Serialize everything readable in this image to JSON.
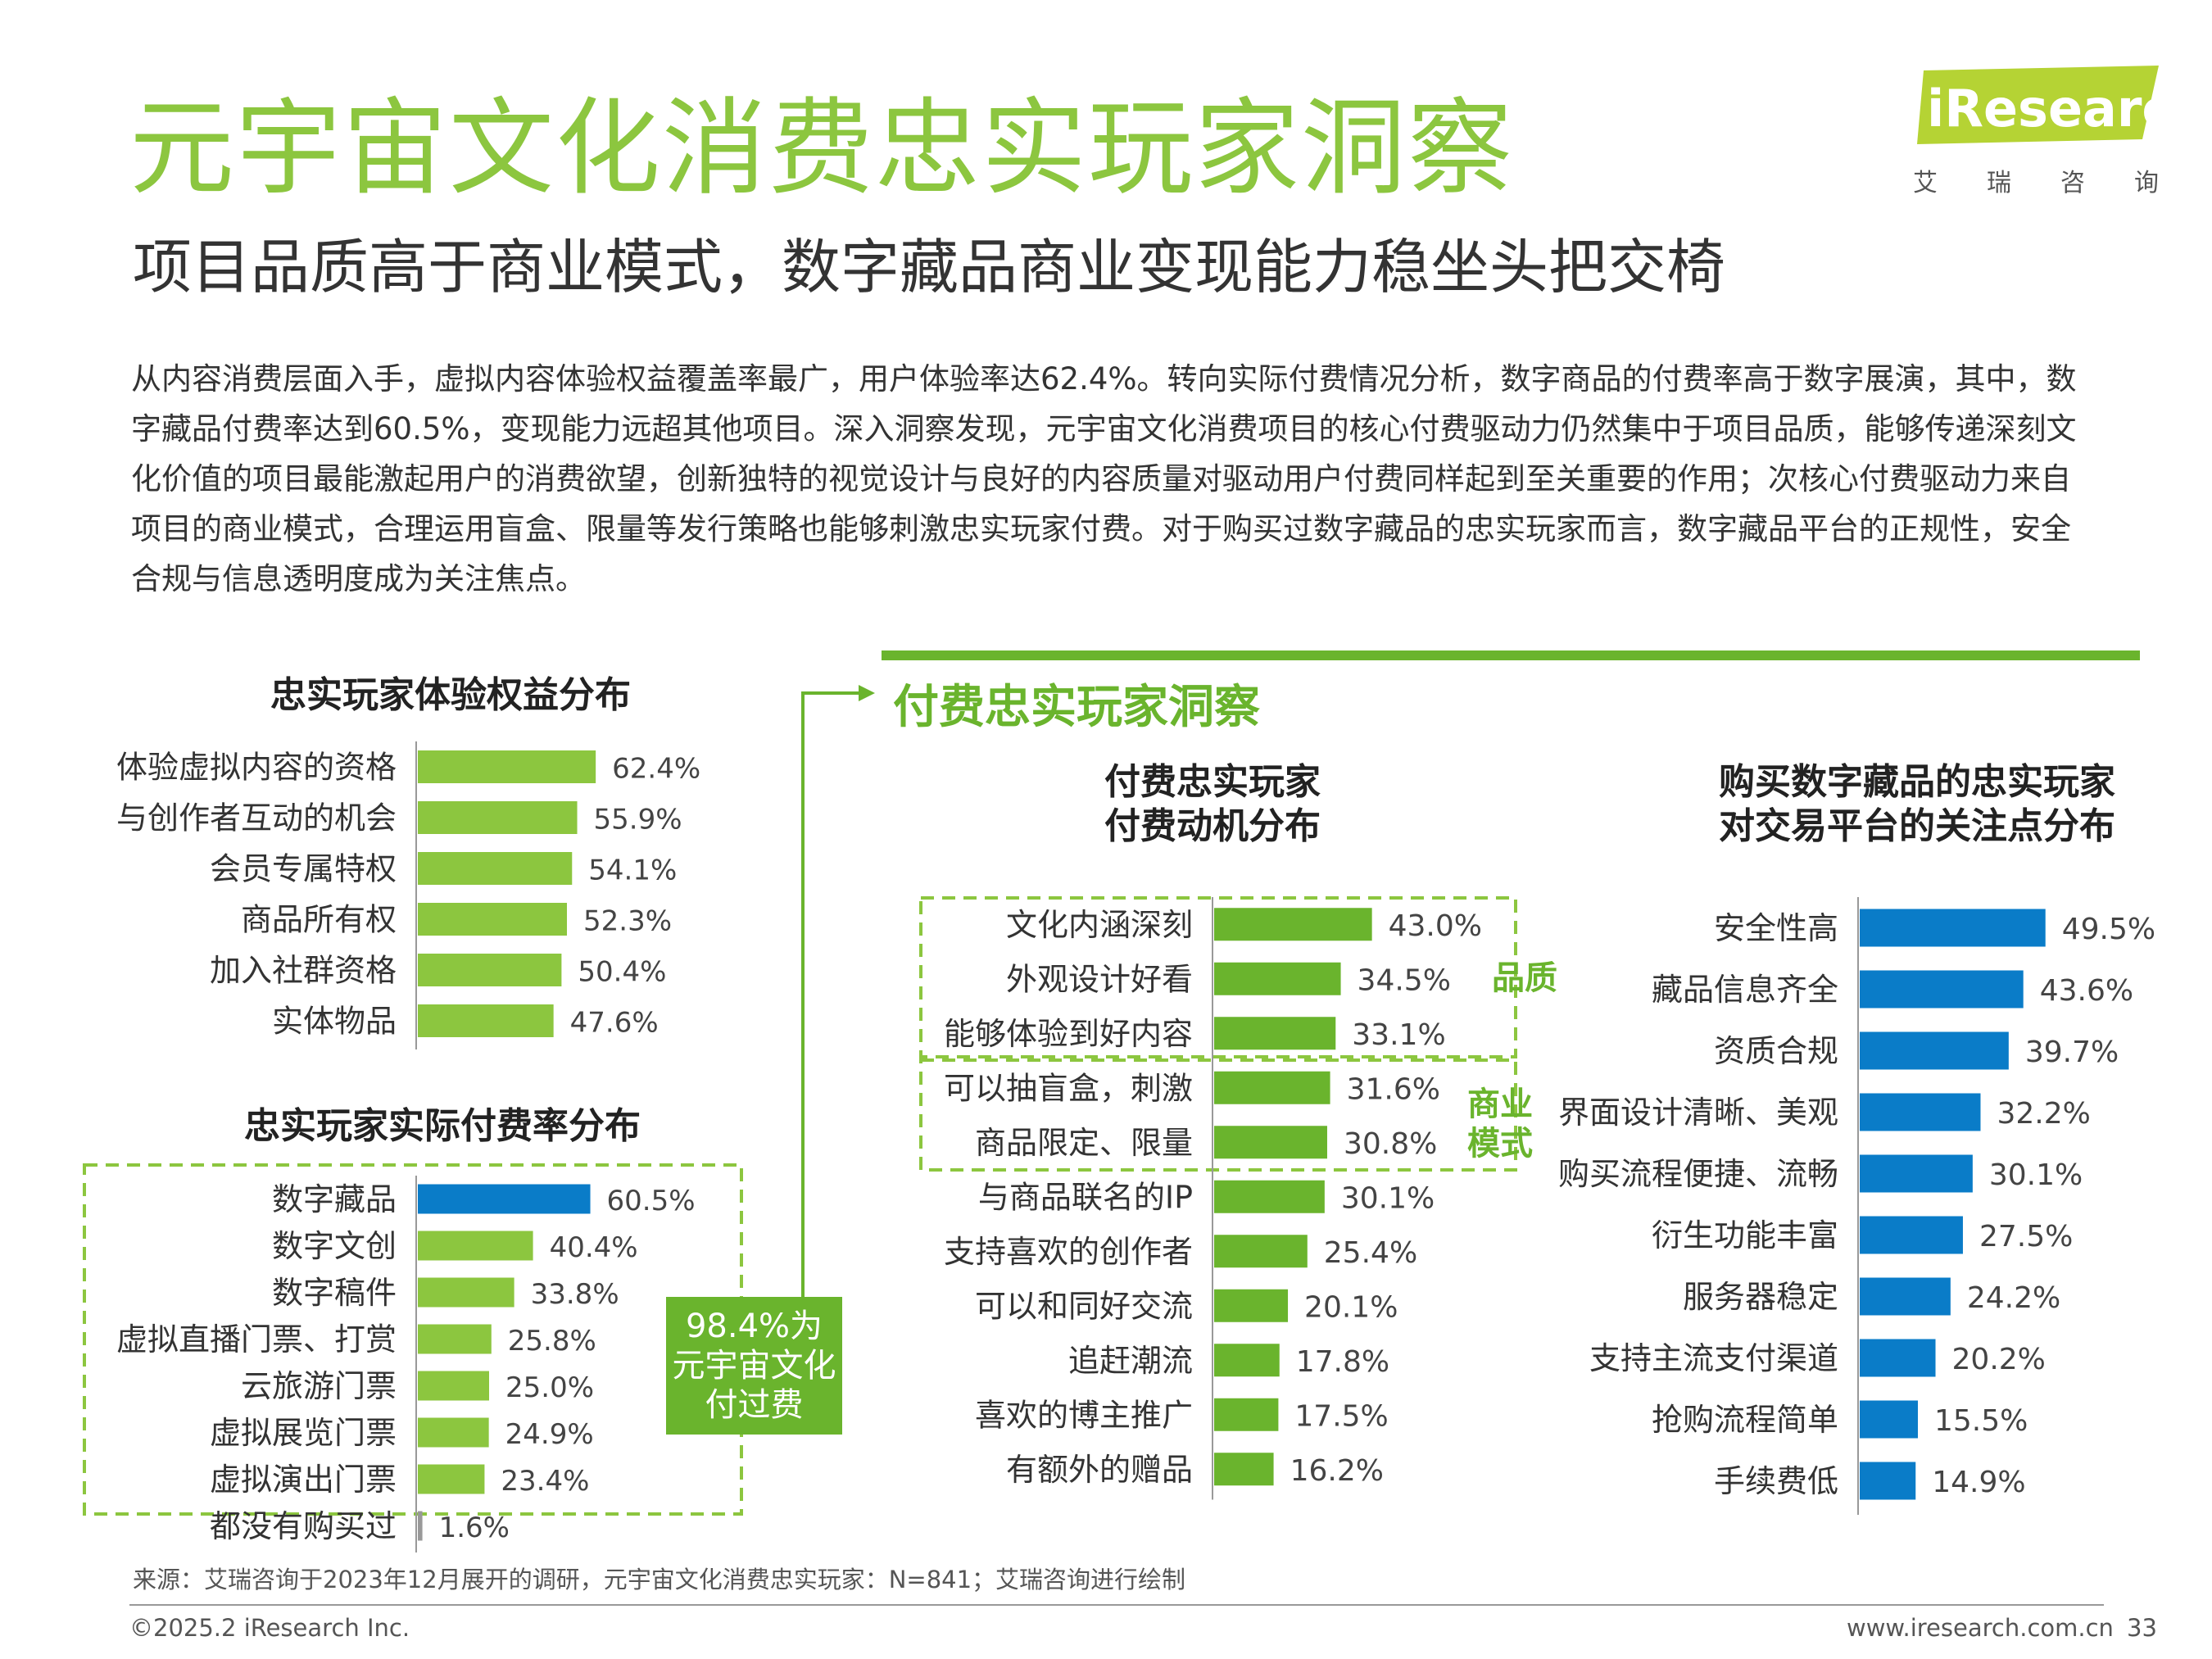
{
  "header": {
    "title": "元宇宙文化消费忠实玩家洞察",
    "subtitle": "项目品质高于商业模式，数字藏品商业变现能力稳坐头把交椅",
    "logo_text": "iResearch",
    "logo_sub": [
      "艾",
      "瑞",
      "咨",
      "询"
    ]
  },
  "body": {
    "paragraph": "从内容消费层面入手，虚拟内容体验权益覆盖率最广，用户体验率达62.4%。转向实际付费情况分析，数字商品的付费率高于数字展演，其中，数字藏品付费率达到60.5%，变现能力远超其他项目。深入洞察发现，元宇宙文化消费项目的核心付费驱动力仍然集中于项目品质，能够传递深刻文化价值的项目最能激起用户的消费欲望，创新独特的视觉设计与良好的内容质量对驱动用户付费同样起到至关重要的作用；次核心付费驱动力来自项目的商业模式，合理运用盲盒、限量等发行策略也能够刺激忠实玩家付费。对于购买过数字藏品的忠实玩家而言，数字藏品平台的正规性，安全合规与信息透明度成为关注焦点。"
  },
  "insight_section": {
    "title": "付费忠实玩家洞察",
    "callout": "98.4%为\n元宇宙文化\n付过费",
    "group_quality": "品质",
    "group_business": "商业\n模式"
  },
  "colors": {
    "green": "#8cc63f",
    "dark_green": "#6ab42d",
    "blue": "#0a7cc8",
    "title_green": "#8cc63f"
  },
  "chart_data": [
    {
      "type": "bar",
      "orientation": "horizontal",
      "title": "忠实玩家体验权益分布",
      "categories": [
        "体验虚拟内容的资格",
        "与创作者互动的机会",
        "会员专属特权",
        "商品所有权",
        "加入社群资格",
        "实体物品"
      ],
      "values": [
        62.4,
        55.9,
        54.1,
        52.3,
        50.4,
        47.6
      ],
      "labels": [
        "62.4%",
        "55.9%",
        "54.1%",
        "52.3%",
        "50.4%",
        "47.6%"
      ],
      "colors": [
        "#8cc63f",
        "#8cc63f",
        "#8cc63f",
        "#8cc63f",
        "#8cc63f",
        "#8cc63f"
      ]
    },
    {
      "type": "bar",
      "orientation": "horizontal",
      "title": "忠实玩家实际付费率分布",
      "categories": [
        "数字藏品",
        "数字文创",
        "数字稿件",
        "虚拟直播门票、打赏",
        "云旅游门票",
        "虚拟展览门票",
        "虚拟演出门票",
        "都没有购买过"
      ],
      "values": [
        60.5,
        40.4,
        33.8,
        25.8,
        25.0,
        24.9,
        23.4,
        1.6
      ],
      "labels": [
        "60.5%",
        "40.4%",
        "33.8%",
        "25.8%",
        "25.0%",
        "24.9%",
        "23.4%",
        "1.6%"
      ],
      "colors": [
        "#0a7cc8",
        "#8cc63f",
        "#8cc63f",
        "#8cc63f",
        "#8cc63f",
        "#8cc63f",
        "#8cc63f",
        "#999999"
      ]
    },
    {
      "type": "bar",
      "orientation": "horizontal",
      "title": "付费忠实玩家\n付费动机分布",
      "categories": [
        "文化内涵深刻",
        "外观设计好看",
        "能够体验到好内容",
        "可以抽盲盒，刺激",
        "商品限定、限量",
        "与商品联名的IP",
        "支持喜欢的创作者",
        "可以和同好交流",
        "追赶潮流",
        "喜欢的博主推广",
        "有额外的赠品"
      ],
      "values": [
        43.0,
        34.5,
        33.1,
        31.6,
        30.8,
        30.1,
        25.4,
        20.1,
        17.8,
        17.5,
        16.2
      ],
      "labels": [
        "43.0%",
        "34.5%",
        "33.1%",
        "31.6%",
        "30.8%",
        "30.1%",
        "25.4%",
        "20.1%",
        "17.8%",
        "17.5%",
        "16.2%"
      ],
      "colors": [
        "#6ab42d"
      ]
    },
    {
      "type": "bar",
      "orientation": "horizontal",
      "title": "购买数字藏品的忠实玩家\n对交易平台的关注点分布",
      "categories": [
        "安全性高",
        "藏品信息齐全",
        "资质合规",
        "界面设计清晰、美观",
        "购买流程便捷、流畅",
        "衍生功能丰富",
        "服务器稳定",
        "支持主流支付渠道",
        "抢购流程简单",
        "手续费低"
      ],
      "values": [
        49.5,
        43.6,
        39.7,
        32.2,
        30.1,
        27.5,
        24.2,
        20.2,
        15.5,
        14.9
      ],
      "labels": [
        "49.5%",
        "43.6%",
        "39.7%",
        "32.2%",
        "30.1%",
        "27.5%",
        "24.2%",
        "20.2%",
        "15.5%",
        "14.9%"
      ],
      "colors": [
        "#0a7cc8"
      ]
    }
  ],
  "footer": {
    "source": "来源：艾瑞咨询于2023年12月展开的调研，元宇宙文化消费忠实玩家：N=841；艾瑞咨询进行绘制",
    "copyright": "©2025.2 iResearch Inc.",
    "website": "www.iresearch.com.cn",
    "page": "33"
  }
}
